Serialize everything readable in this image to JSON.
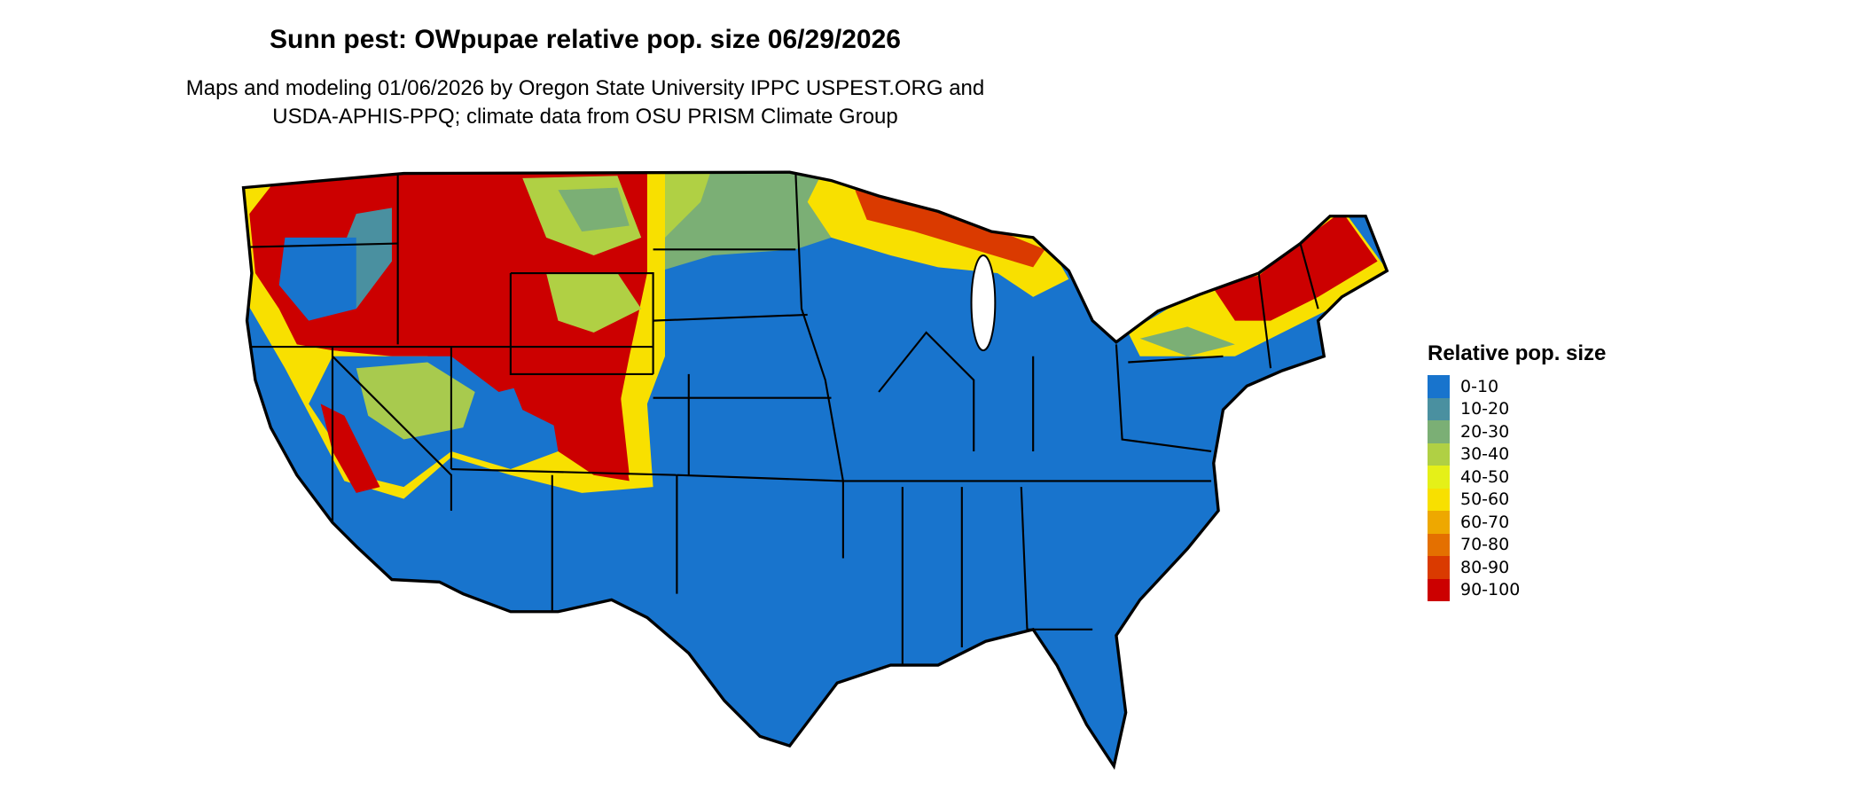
{
  "title": "Sunn pest: OWpupae relative pop. size 06/29/2026",
  "subtitle_line1": "Maps and modeling 01/06/2026 by Oregon State University IPPC USPEST.ORG and",
  "subtitle_line2": "USDA-APHIS-PPQ; climate data from OSU PRISM Climate Group",
  "legend": {
    "title": "Relative pop. size",
    "items": [
      {
        "label": "0-10",
        "color": "#1874CD"
      },
      {
        "label": "10-20",
        "color": "#4A90A0"
      },
      {
        "label": "20-30",
        "color": "#7BAF75"
      },
      {
        "label": "30-40",
        "color": "#B0D044"
      },
      {
        "label": "40-50",
        "color": "#E5F018"
      },
      {
        "label": "50-60",
        "color": "#F8E000"
      },
      {
        "label": "60-70",
        "color": "#EEA800"
      },
      {
        "label": "70-80",
        "color": "#E47000"
      },
      {
        "label": "80-90",
        "color": "#DA3A00"
      },
      {
        "label": "90-100",
        "color": "#CC0000"
      }
    ]
  }
}
